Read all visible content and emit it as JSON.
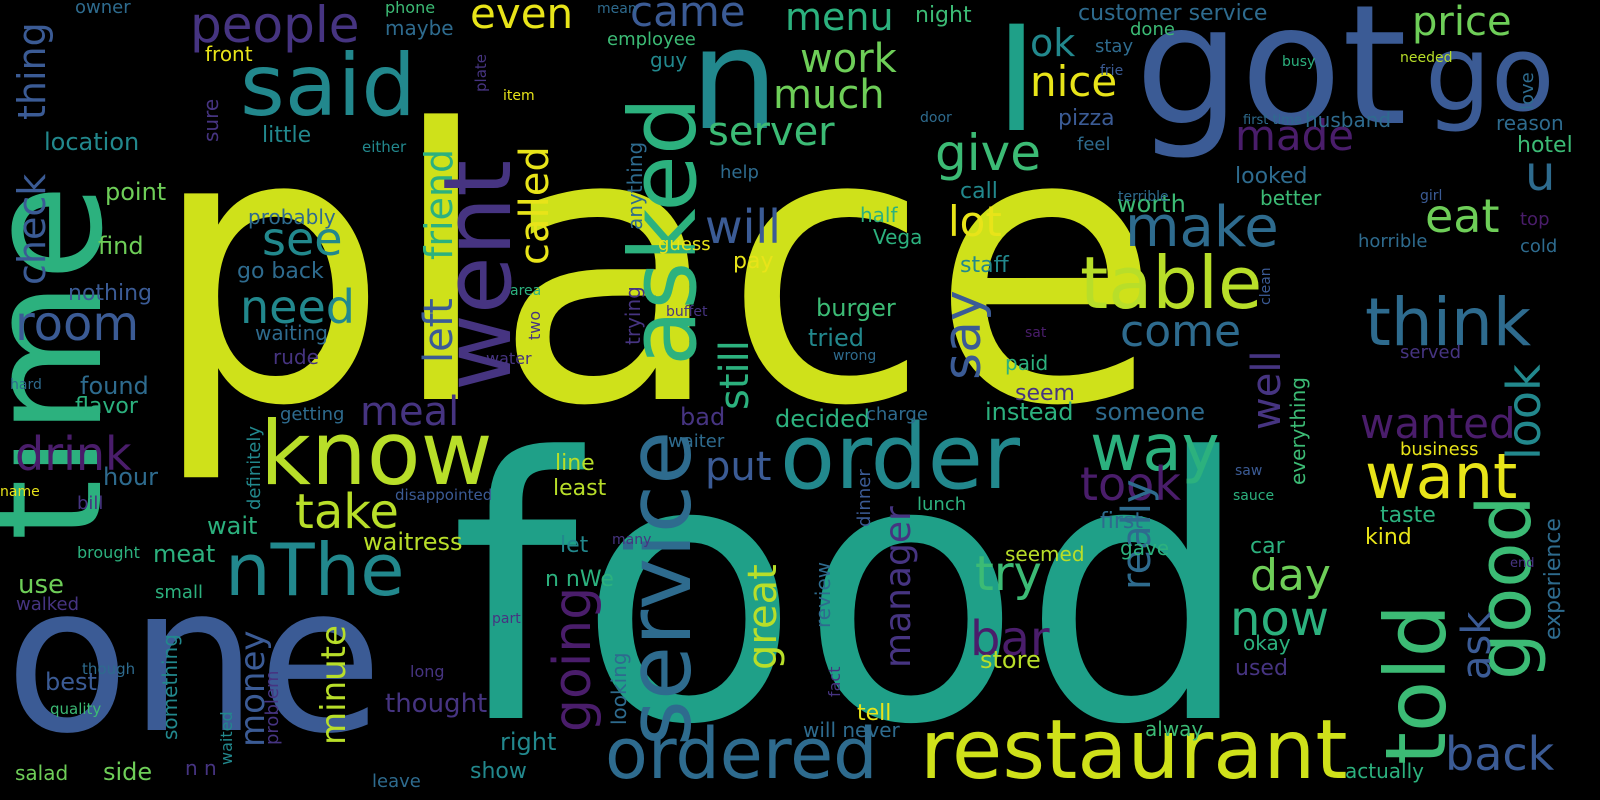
{
  "background": "#000000",
  "palette": [
    "#440154",
    "#482878",
    "#3e4989",
    "#31688e",
    "#26828e",
    "#1f9e89",
    "#35b779",
    "#6ece58",
    "#b5de2b",
    "#fde725"
  ],
  "words": [
    {
      "text": "place",
      "color": "#cfe11a"
    },
    {
      "text": "food",
      "color": "#1fa088"
    },
    {
      "text": "time",
      "color": "#2cb17e"
    },
    {
      "text": "one",
      "color": "#3b5b95"
    },
    {
      "text": "got",
      "color": "#3b5b95"
    },
    {
      "text": "n",
      "color": "#22888d"
    },
    {
      "text": "I",
      "color": "#1fa088"
    },
    {
      "text": "asked",
      "color": "#2cb17e"
    },
    {
      "text": "went",
      "color": "#463481"
    },
    {
      "text": "go",
      "color": "#3b5b95"
    },
    {
      "text": "said",
      "color": "#22888d"
    },
    {
      "text": "know",
      "color": "#b8de29"
    },
    {
      "text": "order",
      "color": "#22888d"
    },
    {
      "text": "service",
      "color": "#2e6b8e"
    },
    {
      "text": "restaurant",
      "color": "#cfe11a"
    },
    {
      "text": "ordered",
      "color": "#2e6b8e"
    },
    {
      "text": "told",
      "color": "#3cbb75"
    },
    {
      "text": "good",
      "color": "#3cbb75"
    },
    {
      "text": "table",
      "color": "#b8de29"
    },
    {
      "text": "think",
      "color": "#2e6b8e"
    },
    {
      "text": "want",
      "color": "#e8e419"
    },
    {
      "text": "nThe",
      "color": "#22888d"
    },
    {
      "text": "going",
      "color": "#4a1d6b"
    },
    {
      "text": "people",
      "color": "#463481"
    },
    {
      "text": "price",
      "color": "#6ece58"
    },
    {
      "text": "even",
      "color": "#e8e419"
    },
    {
      "text": "came",
      "color": "#3b5b95"
    },
    {
      "text": "menu",
      "color": "#2cb17e"
    },
    {
      "text": "work",
      "color": "#6ece58"
    },
    {
      "text": "much",
      "color": "#6ece58"
    },
    {
      "text": "nice",
      "color": "#e8e419"
    },
    {
      "text": "ok",
      "color": "#22888d"
    },
    {
      "text": "server",
      "color": "#3cbb75"
    },
    {
      "text": "give",
      "color": "#3cbb75"
    },
    {
      "text": "made",
      "color": "#4a1d6b"
    },
    {
      "text": "u",
      "color": "#2e6b8e"
    },
    {
      "text": "eat",
      "color": "#6ece58"
    },
    {
      "text": "make",
      "color": "#2e6b8e"
    },
    {
      "text": "say",
      "color": "#3b5b95"
    },
    {
      "text": "will",
      "color": "#3b5b95"
    },
    {
      "text": "lot",
      "color": "#e8e419"
    },
    {
      "text": "come",
      "color": "#2e6b8e"
    },
    {
      "text": "see",
      "color": "#22888d"
    },
    {
      "text": "need",
      "color": "#22888d"
    },
    {
      "text": "room",
      "color": "#3b5b95"
    },
    {
      "text": "drink",
      "color": "#4a1d6b"
    },
    {
      "text": "check",
      "color": "#3b5b95"
    },
    {
      "text": "thing",
      "color": "#3b5b95"
    },
    {
      "text": "called",
      "color": "#e8e419"
    },
    {
      "text": "friend",
      "color": "#2cb17e"
    },
    {
      "text": "left",
      "color": "#3b5b95"
    },
    {
      "text": "take",
      "color": "#b8de29"
    },
    {
      "text": "meal",
      "color": "#463481"
    },
    {
      "text": "put",
      "color": "#3b5b95"
    },
    {
      "text": "still",
      "color": "#2cb17e"
    },
    {
      "text": "way",
      "color": "#2cb17e"
    },
    {
      "text": "took",
      "color": "#4a1d6b"
    },
    {
      "text": "wanted",
      "color": "#4a1d6b"
    },
    {
      "text": "look",
      "color": "#22888d"
    },
    {
      "text": "well",
      "color": "#463481"
    },
    {
      "text": "really",
      "color": "#2e6b8e"
    },
    {
      "text": "try",
      "color": "#3cbb75"
    },
    {
      "text": "day",
      "color": "#6ece58"
    },
    {
      "text": "now",
      "color": "#2cb17e"
    },
    {
      "text": "bar",
      "color": "#4a1d6b"
    },
    {
      "text": "great",
      "color": "#b8de29"
    },
    {
      "text": "manager",
      "color": "#463481"
    },
    {
      "text": "minute",
      "color": "#b8de29"
    },
    {
      "text": "money",
      "color": "#3b5b95"
    },
    {
      "text": "ask",
      "color": "#3b5b95"
    },
    {
      "text": "back",
      "color": "#3b5b95"
    },
    {
      "text": "experience",
      "color": "#2e6b8e"
    },
    {
      "text": "location",
      "color": "#22888d"
    },
    {
      "text": "point",
      "color": "#6ece58"
    },
    {
      "text": "find",
      "color": "#6ece58"
    },
    {
      "text": "little",
      "color": "#22888d"
    },
    {
      "text": "probably",
      "color": "#2e6b8e"
    },
    {
      "text": "go back",
      "color": "#2e6b8e"
    },
    {
      "text": "nothing",
      "color": "#3b5b95"
    },
    {
      "text": "waiting",
      "color": "#2e6b8e"
    },
    {
      "text": "rude",
      "color": "#463481"
    },
    {
      "text": "found",
      "color": "#2e6b8e"
    },
    {
      "text": "flavor",
      "color": "#2cb17e"
    },
    {
      "text": "hour",
      "color": "#2e6b8e"
    },
    {
      "text": "wait",
      "color": "#2cb17e"
    },
    {
      "text": "meat",
      "color": "#2cb17e"
    },
    {
      "text": "use",
      "color": "#6ece58"
    },
    {
      "text": "walked",
      "color": "#463481"
    },
    {
      "text": "best",
      "color": "#3b5b95"
    },
    {
      "text": "salad",
      "color": "#6ece58"
    },
    {
      "text": "side",
      "color": "#6ece58"
    },
    {
      "text": "waitress",
      "color": "#b8de29"
    },
    {
      "text": "thought",
      "color": "#463481"
    },
    {
      "text": "right",
      "color": "#22888d"
    },
    {
      "text": "show",
      "color": "#22888d"
    },
    {
      "text": "customer service",
      "color": "#2e6b8e"
    },
    {
      "text": "stay",
      "color": "#2e6b8e"
    },
    {
      "text": "pizza",
      "color": "#3b5b95"
    },
    {
      "text": "husband",
      "color": "#2e6b8e"
    },
    {
      "text": "reason",
      "color": "#2e6b8e"
    },
    {
      "text": "hotel",
      "color": "#3cbb75"
    },
    {
      "text": "better",
      "color": "#3cbb75"
    },
    {
      "text": "top",
      "color": "#4a1d6b"
    },
    {
      "text": "horrible",
      "color": "#2e6b8e"
    },
    {
      "text": "cold",
      "color": "#2e6b8e"
    },
    {
      "text": "looked",
      "color": "#2e6b8e"
    },
    {
      "text": "worth",
      "color": "#3cbb75"
    },
    {
      "text": "staff",
      "color": "#22888d"
    },
    {
      "text": "call",
      "color": "#22888d"
    },
    {
      "text": "half",
      "color": "#2cb17e"
    },
    {
      "text": "Vega",
      "color": "#2cb17e"
    },
    {
      "text": "pay",
      "color": "#e8e419"
    },
    {
      "text": "burger",
      "color": "#3cbb75"
    },
    {
      "text": "tried",
      "color": "#22888d"
    },
    {
      "text": "decided",
      "color": "#2cb17e"
    },
    {
      "text": "instead",
      "color": "#2cb17e"
    },
    {
      "text": "someone",
      "color": "#2e6b8e"
    },
    {
      "text": "seem",
      "color": "#463481"
    },
    {
      "text": "paid",
      "color": "#2cb17e"
    },
    {
      "text": "served",
      "color": "#463481"
    },
    {
      "text": "everything",
      "color": "#3cbb75"
    },
    {
      "text": "business",
      "color": "#e8e419"
    },
    {
      "text": "taste",
      "color": "#2cb17e"
    },
    {
      "text": "kind",
      "color": "#e8e419"
    },
    {
      "text": "first",
      "color": "#2e6b8e"
    },
    {
      "text": "gave",
      "color": "#2cb17e"
    },
    {
      "text": "car",
      "color": "#2cb17e"
    },
    {
      "text": "seemed",
      "color": "#b8de29"
    },
    {
      "text": "store",
      "color": "#b8de29"
    },
    {
      "text": "okay",
      "color": "#2cb17e"
    },
    {
      "text": "used",
      "color": "#463481"
    },
    {
      "text": "alway",
      "color": "#3cbb75"
    },
    {
      "text": "actually",
      "color": "#2cb17e"
    },
    {
      "text": "tell",
      "color": "#e8e419"
    },
    {
      "text": "will never",
      "color": "#2e6b8e"
    },
    {
      "text": "bad",
      "color": "#463481"
    },
    {
      "text": "waiter",
      "color": "#2e6b8e"
    },
    {
      "text": "line",
      "color": "#b8de29"
    },
    {
      "text": "least",
      "color": "#b8de29"
    },
    {
      "text": "let",
      "color": "#22888d"
    },
    {
      "text": "n nWe",
      "color": "#2cb17e"
    },
    {
      "text": "employee",
      "color": "#3cbb75"
    },
    {
      "text": "guy",
      "color": "#22888d"
    },
    {
      "text": "item",
      "color": "#e8e419"
    },
    {
      "text": "feel",
      "color": "#2e6b8e"
    },
    {
      "text": "help",
      "color": "#2e6b8e"
    },
    {
      "text": "first time",
      "color": "#2e6b8e"
    },
    {
      "text": "busy",
      "color": "#2cb17e"
    },
    {
      "text": "needed",
      "color": "#b8de29"
    },
    {
      "text": "love",
      "color": "#2e6b8e"
    },
    {
      "text": "done",
      "color": "#3cbb75"
    },
    {
      "text": "frie",
      "color": "#3b5b95"
    },
    {
      "text": "night",
      "color": "#3cbb75"
    },
    {
      "text": "door",
      "color": "#2e6b8e"
    },
    {
      "text": "terrible",
      "color": "#2e6b8e"
    },
    {
      "text": "girl",
      "color": "#3b5b95"
    },
    {
      "text": "guess",
      "color": "#e8e419"
    },
    {
      "text": "anything",
      "color": "#2e6b8e"
    },
    {
      "text": "trying",
      "color": "#463481"
    },
    {
      "text": "buffet",
      "color": "#463481"
    },
    {
      "text": "clean",
      "color": "#3b5b95"
    },
    {
      "text": "area",
      "color": "#2cb17e"
    },
    {
      "text": "two",
      "color": "#463481"
    },
    {
      "text": "water",
      "color": "#463481"
    },
    {
      "text": "sat",
      "color": "#4a1d6b"
    },
    {
      "text": "wrong",
      "color": "#2e6b8e"
    },
    {
      "text": "getting",
      "color": "#2e6b8e"
    },
    {
      "text": "charge",
      "color": "#2e6b8e"
    },
    {
      "text": "definitely",
      "color": "#22888d"
    },
    {
      "text": "disappointed",
      "color": "#3b5b95"
    },
    {
      "text": "dinner",
      "color": "#3b5b95"
    },
    {
      "text": "lunch",
      "color": "#2cb17e"
    },
    {
      "text": "saw",
      "color": "#3b5b95"
    },
    {
      "text": "sauce",
      "color": "#2cb17e"
    },
    {
      "text": "end",
      "color": "#463481"
    },
    {
      "text": "many",
      "color": "#463481"
    },
    {
      "text": "review",
      "color": "#2e6b8e"
    },
    {
      "text": "fact",
      "color": "#463481"
    },
    {
      "text": "small",
      "color": "#2cb17e"
    },
    {
      "text": "brought",
      "color": "#2cb17e"
    },
    {
      "text": "bill",
      "color": "#463481"
    },
    {
      "text": "name",
      "color": "#e8e419"
    },
    {
      "text": "hard",
      "color": "#2e6b8e"
    },
    {
      "text": "though",
      "color": "#2e6b8e"
    },
    {
      "text": "quality",
      "color": "#3cbb75"
    },
    {
      "text": "something",
      "color": "#22888d"
    },
    {
      "text": "waited",
      "color": "#22888d"
    },
    {
      "text": "problem",
      "color": "#463481"
    },
    {
      "text": "long",
      "color": "#463481"
    },
    {
      "text": "looking",
      "color": "#2e6b8e"
    },
    {
      "text": "part",
      "color": "#463481"
    },
    {
      "text": "leave",
      "color": "#2e6b8e"
    },
    {
      "text": "n n",
      "color": "#463481"
    },
    {
      "text": "owner",
      "color": "#2e6b8e"
    },
    {
      "text": "phone",
      "color": "#3cbb75"
    },
    {
      "text": "maybe",
      "color": "#2e6b8e"
    },
    {
      "text": "front",
      "color": "#e8e419"
    },
    {
      "text": "sure",
      "color": "#463481"
    },
    {
      "text": "either",
      "color": "#22888d"
    },
    {
      "text": "plate",
      "color": "#463481"
    },
    {
      "text": "mean",
      "color": "#2e6b8e"
    }
  ]
}
